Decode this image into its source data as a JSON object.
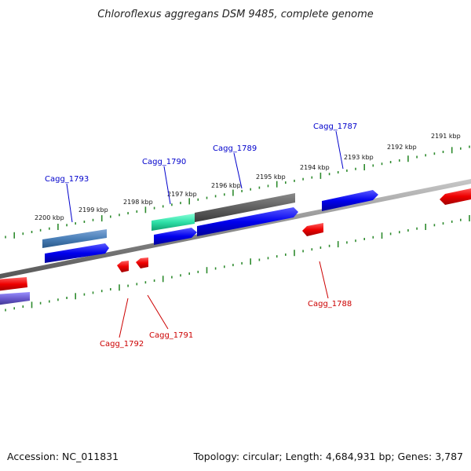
{
  "title": "Chloroflexus aggregans DSM 9485, complete genome",
  "footer": {
    "accession": "Accession: NC_011831",
    "summary": "Topology: circular; Length: 4,684,931 bp; Genes: 3,787"
  },
  "ticks": [
    "2200 kbp",
    "2199 kbp",
    "2198 kbp",
    "2197 kbp",
    "2196 kbp",
    "2195 kbp",
    "2194 kbp",
    "2193 kbp",
    "2192 kbp",
    "2191 kbp"
  ],
  "genes_top": [
    "Cagg_1793",
    "Cagg_1790",
    "Cagg_1789",
    "Cagg_1787"
  ],
  "genes_bottom": [
    "Cagg_1788",
    "Cagg_1792",
    "Cagg_1791"
  ],
  "colors": {
    "label_top": "#0000cc",
    "label_bottom": "#cc0000",
    "tick": "#2e8b2e",
    "backbone": "#8c8c8c",
    "cds_forward": "#0000ee",
    "cds_reverse": "#ee0000"
  }
}
